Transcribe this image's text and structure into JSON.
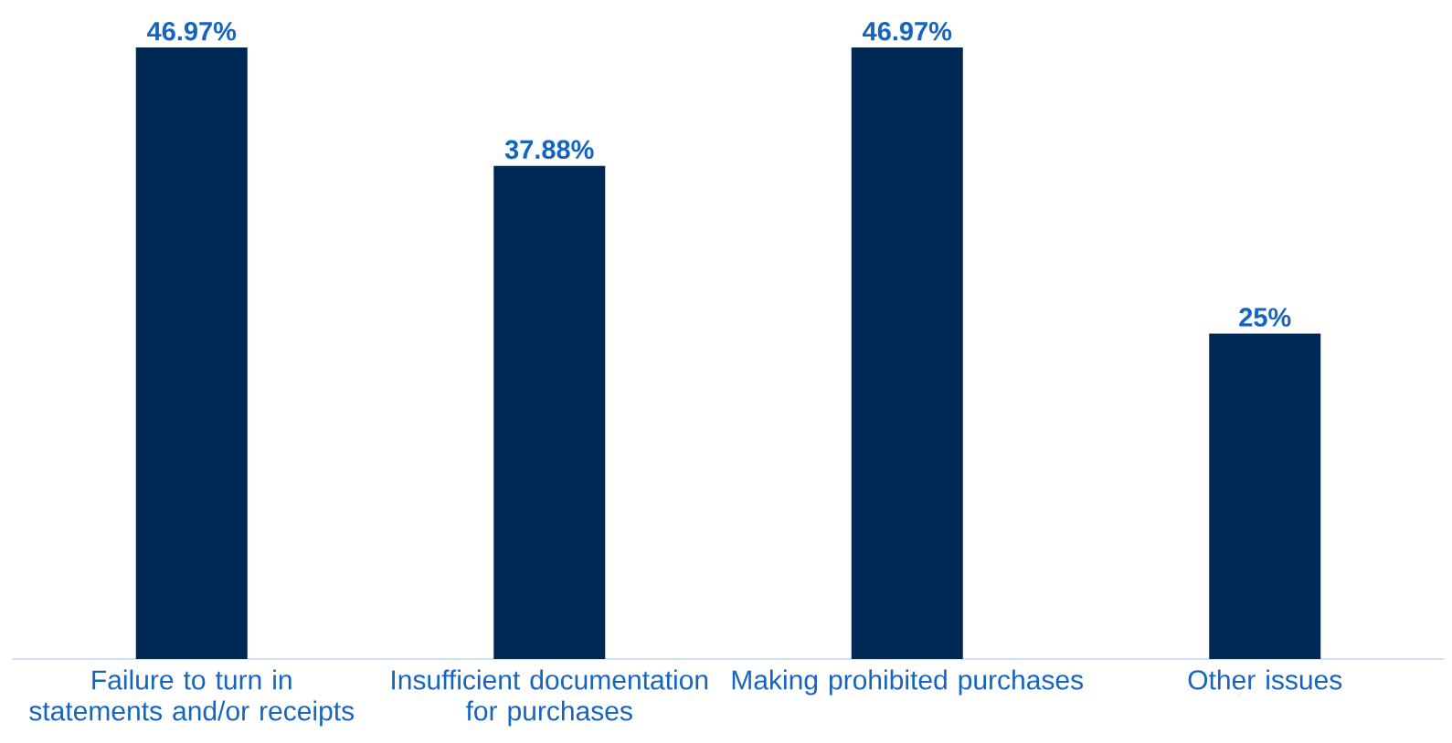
{
  "chart_data": {
    "type": "bar",
    "categories": [
      "Failure to turn in statements and/or receipts",
      "Insufficient documentation for purchases",
      "Making prohibited purchases",
      "Other issues"
    ],
    "values": [
      46.97,
      37.88,
      46.97,
      25
    ],
    "value_labels": [
      "46.97%",
      "37.88%",
      "46.97%",
      "25%"
    ],
    "color": "#002855"
  }
}
